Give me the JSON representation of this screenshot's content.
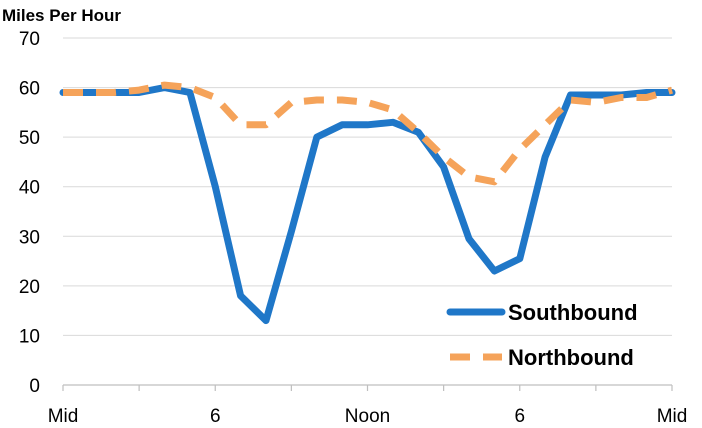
{
  "chart_data": {
    "type": "line",
    "title": "",
    "ylabel": "Miles Per Hour",
    "xlabel": "",
    "ylim": [
      0,
      70
    ],
    "yticks": [
      0,
      10,
      20,
      30,
      40,
      50,
      60,
      70
    ],
    "xlim": [
      0,
      24
    ],
    "x_tick_labels": [
      {
        "hour": 0,
        "label": "Mid"
      },
      {
        "hour": 6,
        "label": "6"
      },
      {
        "hour": 12,
        "label": "Noon"
      },
      {
        "hour": 18,
        "label": "6"
      },
      {
        "hour": 24,
        "label": "Mid"
      }
    ],
    "x_minor_ticks": [
      0,
      3,
      6,
      9,
      12,
      15,
      18,
      21,
      24
    ],
    "grid": "horizontal",
    "legend_position": "bottom-right",
    "x": [
      0,
      1,
      2,
      3,
      4,
      5,
      6,
      7,
      8,
      9,
      10,
      11,
      12,
      13,
      14,
      15,
      16,
      17,
      18,
      19,
      20,
      21,
      22,
      23,
      24
    ],
    "series": [
      {
        "name": "Southbound",
        "color": "#1f77c8",
        "style": "solid",
        "values": [
          59,
          59,
          59,
          59,
          60,
          59,
          40,
          18,
          13,
          31,
          50,
          52.5,
          52.5,
          53,
          51,
          44,
          29.5,
          23,
          25.5,
          46,
          58.5,
          58.5,
          58.5,
          59,
          59
        ]
      },
      {
        "name": "Northbound",
        "color": "#f5a35a",
        "style": "dashed",
        "values": [
          59,
          59,
          59,
          59.5,
          60.5,
          60,
          58,
          52.5,
          52.5,
          57,
          57.5,
          57.5,
          57,
          55.5,
          51,
          46,
          42,
          41,
          47.5,
          52.5,
          57.5,
          57,
          58,
          58,
          59.5
        ]
      }
    ]
  }
}
